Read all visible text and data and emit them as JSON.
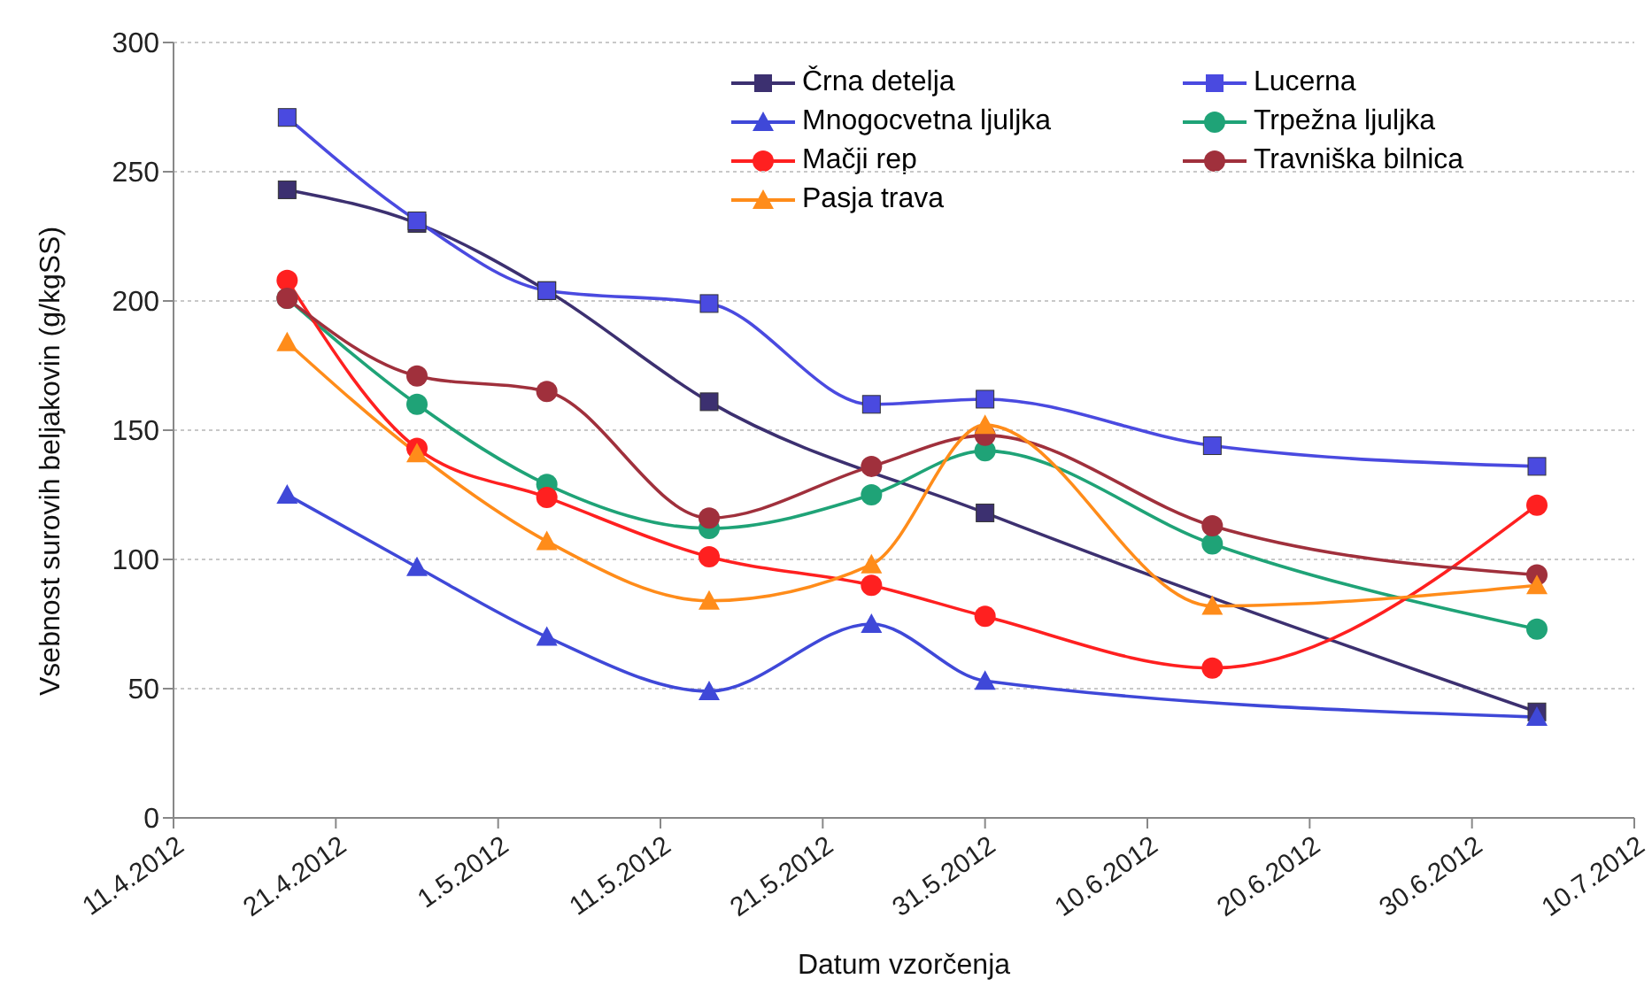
{
  "chart_data": {
    "type": "line",
    "xlabel": "Datum vzorčenja",
    "ylabel": "Vsebnost surovih beljakovin (g/kgSS)",
    "x": [
      "2012-04-18",
      "2012-04-26",
      "2012-05-04",
      "2012-05-14",
      "2012-05-24",
      "2012-05-31",
      "2012-06-14",
      "2012-07-04"
    ],
    "series": [
      {
        "name": "Črna detelja",
        "color": "#3c3070",
        "marker": "square",
        "x": [
          "2012-04-18",
          "2012-04-26",
          "2012-05-04",
          "2012-05-14",
          "2012-05-31",
          "2012-07-04"
        ],
        "values": [
          243,
          230,
          204,
          161,
          118,
          41
        ]
      },
      {
        "name": "Lucerna",
        "color": "#4a4ae0",
        "marker": "square",
        "values": [
          271,
          231,
          204,
          199,
          160,
          162,
          144,
          136
        ]
      },
      {
        "name": "Mnogocvetna ljuljka",
        "color": "#3f48d8",
        "marker": "triangle",
        "x": [
          "2012-04-18",
          "2012-04-26",
          "2012-05-04",
          "2012-05-14",
          "2012-05-24",
          "2012-05-31",
          "2012-07-04"
        ],
        "values": [
          125,
          97,
          70,
          49,
          75,
          53,
          39
        ]
      },
      {
        "name": "Trpežna ljuljka",
        "color": "#1fa377",
        "marker": "circle",
        "values": [
          201,
          160,
          129,
          112,
          125,
          142,
          106,
          73
        ]
      },
      {
        "name": "Mačji rep",
        "color": "#ff2020",
        "marker": "circle",
        "values": [
          208,
          143,
          124,
          101,
          90,
          78,
          58,
          121
        ]
      },
      {
        "name": "Travniška bilnica",
        "color": "#a0303c",
        "marker": "circle",
        "values": [
          201,
          171,
          165,
          116,
          136,
          148,
          113,
          94
        ]
      },
      {
        "name": "Pasja trava",
        "color": "#ff8c1a",
        "marker": "triangle",
        "values": [
          184,
          141,
          107,
          84,
          98,
          152,
          82,
          90
        ]
      }
    ],
    "xlim": [
      "2012-04-11",
      "2012-07-10"
    ],
    "xticks": [
      {
        "value": "2012-04-11",
        "label": "11.4.2012"
      },
      {
        "value": "2012-04-21",
        "label": "21.4.2012"
      },
      {
        "value": "2012-05-01",
        "label": "1.5.2012"
      },
      {
        "value": "2012-05-11",
        "label": "11.5.2012"
      },
      {
        "value": "2012-05-21",
        "label": "21.5.2012"
      },
      {
        "value": "2012-05-31",
        "label": "31.5.2012"
      },
      {
        "value": "2012-06-10",
        "label": "10.6.2012"
      },
      {
        "value": "2012-06-20",
        "label": "20.6.2012"
      },
      {
        "value": "2012-06-30",
        "label": "30.6.2012"
      },
      {
        "value": "2012-07-10",
        "label": "10.7.2012"
      }
    ],
    "ylim": [
      0,
      300
    ],
    "yticks": [
      0,
      50,
      100,
      150,
      200,
      250,
      300
    ],
    "grid": "y",
    "legend": "top right"
  }
}
